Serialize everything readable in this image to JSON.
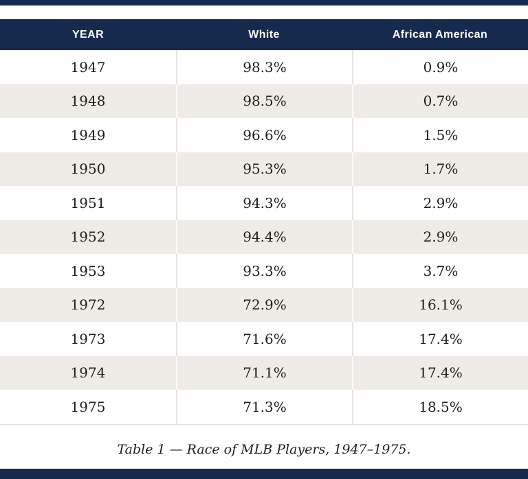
{
  "colors": {
    "accent_navy": "#162a4e",
    "stripe_beige": "#efece7",
    "body_text": "#1e1d1b",
    "header_text": "#ffffff"
  },
  "caption": {
    "text": "Table 1 — Race of MLB Players, 1947–1975."
  },
  "chart_data": {
    "type": "table",
    "title": "Table 1 — Race of MLB Players, 1947–1975.",
    "columns": [
      "YEAR",
      "White",
      "African American"
    ],
    "rows": [
      [
        "1947",
        "98.3%",
        "0.9%"
      ],
      [
        "1948",
        "98.5%",
        "0.7%"
      ],
      [
        "1949",
        "96.6%",
        "1.5%"
      ],
      [
        "1950",
        "95.3%",
        "1.7%"
      ],
      [
        "1951",
        "94.3%",
        "2.9%"
      ],
      [
        "1952",
        "94.4%",
        "2.9%"
      ],
      [
        "1953",
        "93.3%",
        "3.7%"
      ],
      [
        "1972",
        "72.9%",
        "16.1%"
      ],
      [
        "1973",
        "71.6%",
        "17.4%"
      ],
      [
        "1974",
        "71.1%",
        "17.4%"
      ],
      [
        "1975",
        "71.3%",
        "18.5%"
      ]
    ],
    "categories": [
      "1947",
      "1948",
      "1949",
      "1950",
      "1951",
      "1952",
      "1953",
      "1972",
      "1973",
      "1974",
      "1975"
    ],
    "series": [
      {
        "name": "White",
        "values": [
          98.3,
          98.5,
          96.6,
          95.3,
          94.3,
          94.4,
          93.3,
          72.9,
          71.6,
          71.1,
          71.3
        ]
      },
      {
        "name": "African American",
        "values": [
          0.9,
          0.7,
          1.5,
          1.7,
          2.9,
          2.9,
          3.7,
          16.1,
          17.4,
          17.4,
          18.5
        ]
      }
    ],
    "layout_hints": {
      "stripe_alternation": "odd rows white, even rows beige",
      "header_background": "navy",
      "value_alignment": "center"
    }
  }
}
